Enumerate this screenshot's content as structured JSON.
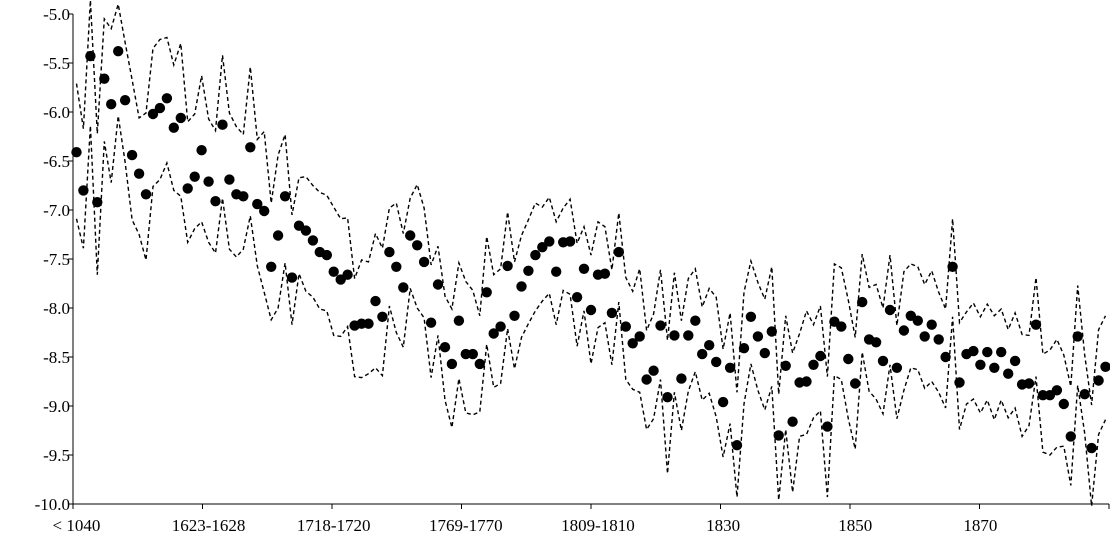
{
  "chart_data": {
    "type": "scatter",
    "title": "",
    "xlabel": "",
    "ylabel": "",
    "ylim": [
      -10.0,
      -5.0
    ],
    "y_ticks": [
      "-5.0",
      "-5.5",
      "-6.0",
      "-6.5",
      "-7.0",
      "-7.5",
      "-8.0",
      "-8.5",
      "-9.0",
      "-9.5",
      "-10.0"
    ],
    "x_tick_labels": [
      "< 1040",
      "1623-1628",
      "1718-1720",
      "1769-1770",
      "1809-1810",
      "1830",
      "1850",
      "1870"
    ],
    "legend": "none",
    "grid": false,
    "colors": {
      "points": "#000000",
      "bands": "#000000",
      "axis": "#000000"
    },
    "series": [
      {
        "style": "markers",
        "values": [
          -6.41,
          -6.8,
          -5.43,
          -6.92,
          -5.66,
          -5.92,
          -5.38,
          -5.88,
          -6.44,
          -6.63,
          -6.84,
          -6.02,
          -5.96,
          -5.86,
          -6.16,
          -6.06,
          -6.78,
          -6.66,
          -6.39,
          -6.71,
          -6.91,
          -6.13,
          -6.69,
          -6.84,
          -6.86,
          -6.36,
          -6.94,
          -7.01,
          -7.58,
          -7.26,
          -6.86,
          -7.69,
          -7.16,
          -7.21,
          -7.31,
          -7.43,
          -7.46,
          -7.63,
          -7.71,
          -7.66,
          -8.18,
          -8.16,
          -8.16,
          -7.93,
          -8.09,
          -7.43,
          -7.58,
          -7.79,
          -7.26,
          -7.36,
          -7.53,
          -8.15,
          -7.76,
          -8.4,
          -8.57,
          -8.13,
          -8.47,
          -8.47,
          -8.57,
          -7.84,
          -8.26,
          -8.19,
          -7.57,
          -8.08,
          -7.78,
          -7.62,
          -7.46,
          -7.38,
          -7.32,
          -7.63,
          -7.33,
          -7.32,
          -7.89,
          -7.6,
          -8.02,
          -7.66,
          -7.65,
          -8.05,
          -7.43,
          -8.19,
          -8.36,
          -8.29,
          -8.73,
          -8.64,
          -8.18,
          -8.91,
          -8.28,
          -8.72,
          -8.28,
          -8.13,
          -8.47,
          -8.38,
          -8.55,
          -8.96,
          -8.61,
          -9.4,
          -8.41,
          -8.09,
          -8.29,
          -8.46,
          -8.24,
          -9.3,
          -8.59,
          -9.16,
          -8.76,
          -8.75,
          -8.58,
          -8.49,
          -9.21,
          -8.14,
          -8.19,
          -8.52,
          -8.77,
          -7.94,
          -8.32,
          -8.35,
          -8.54,
          -8.02,
          -8.61,
          -8.23,
          -8.08,
          -8.13,
          -8.29,
          -8.17,
          -8.32,
          -8.5,
          -7.58,
          -8.76,
          -8.47,
          -8.44,
          -8.58,
          -8.45,
          -8.61,
          -8.45,
          -8.67,
          -8.54,
          -8.78,
          -8.77,
          -8.17,
          -8.89,
          -8.89,
          -8.84,
          -8.98,
          -9.31,
          -8.29,
          -8.88,
          -9.43,
          -8.74,
          -8.6
        ]
      },
      {
        "style": "dashed",
        "values": [
          -5.71,
          -6.17,
          -4.86,
          -6.22,
          -5.05,
          -5.15,
          -4.9,
          -5.29,
          -5.67,
          -6.06,
          -6.01,
          -5.35,
          -5.26,
          -5.24,
          -5.52,
          -5.3,
          -6.1,
          -6.02,
          -5.63,
          -6.07,
          -6.19,
          -5.42,
          -6.01,
          -6.15,
          -6.23,
          -5.54,
          -6.28,
          -6.2,
          -6.93,
          -6.44,
          -6.23,
          -7.05,
          -6.67,
          -6.66,
          -6.75,
          -6.82,
          -6.85,
          -6.97,
          -7.09,
          -7.08,
          -7.7,
          -7.51,
          -7.53,
          -7.24,
          -7.39,
          -6.98,
          -6.93,
          -7.24,
          -6.88,
          -6.74,
          -6.98,
          -7.56,
          -7.37,
          -7.88,
          -8.01,
          -7.54,
          -7.73,
          -7.82,
          -8.08,
          -7.27,
          -7.66,
          -7.6,
          -7.02,
          -7.53,
          -7.26,
          -7.1,
          -6.93,
          -6.97,
          -6.87,
          -7.12,
          -6.98,
          -6.89,
          -7.34,
          -7.17,
          -7.46,
          -7.12,
          -7.17,
          -7.61,
          -7.03,
          -7.69,
          -7.83,
          -7.6,
          -8.23,
          -8.06,
          -7.61,
          -8.33,
          -7.64,
          -8.13,
          -7.7,
          -7.6,
          -7.99,
          -7.8,
          -7.89,
          -8.42,
          -8.05,
          -8.86,
          -7.84,
          -7.52,
          -7.74,
          -7.91,
          -7.58,
          -8.88,
          -8.08,
          -8.46,
          -8.26,
          -8.03,
          -8.17,
          -7.98,
          -8.7,
          -7.55,
          -7.59,
          -7.92,
          -8.3,
          -7.45,
          -7.79,
          -7.76,
          -8.0,
          -7.46,
          -8.18,
          -7.63,
          -7.55,
          -7.58,
          -7.76,
          -7.62,
          -7.84,
          -8.01,
          -7.09,
          -8.15,
          -8.04,
          -7.95,
          -8.09,
          -7.96,
          -8.08,
          -8.01,
          -8.22,
          -8.05,
          -8.27,
          -8.28,
          -7.69,
          -8.47,
          -8.43,
          -8.32,
          -8.48,
          -8.8,
          -7.77,
          -8.48,
          -8.99,
          -8.22,
          -8.08
        ]
      },
      {
        "style": "dashed",
        "values": [
          -7.09,
          -7.39,
          -6.14,
          -7.66,
          -6.3,
          -6.72,
          -6.04,
          -6.51,
          -7.1,
          -7.25,
          -7.51,
          -6.76,
          -6.69,
          -6.52,
          -6.8,
          -6.86,
          -7.33,
          -7.19,
          -7.12,
          -7.33,
          -7.44,
          -6.88,
          -7.4,
          -7.48,
          -7.4,
          -7.06,
          -7.57,
          -7.84,
          -8.12,
          -8.0,
          -7.54,
          -8.17,
          -7.65,
          -7.83,
          -7.89,
          -8.01,
          -8.03,
          -8.28,
          -8.29,
          -8.19,
          -8.7,
          -8.71,
          -8.67,
          -8.61,
          -8.69,
          -7.98,
          -8.25,
          -8.4,
          -7.8,
          -8.0,
          -8.1,
          -8.71,
          -8.28,
          -8.94,
          -9.22,
          -8.72,
          -9.07,
          -9.09,
          -9.06,
          -8.37,
          -8.81,
          -8.77,
          -8.21,
          -8.62,
          -8.3,
          -8.16,
          -8.03,
          -7.93,
          -7.85,
          -8.17,
          -7.82,
          -7.86,
          -8.39,
          -8.03,
          -8.57,
          -8.2,
          -8.15,
          -8.58,
          -7.94,
          -8.73,
          -8.83,
          -8.86,
          -9.24,
          -9.13,
          -8.73,
          -9.69,
          -8.86,
          -9.25,
          -8.85,
          -8.65,
          -8.94,
          -8.87,
          -9.11,
          -9.52,
          -9.18,
          -9.93,
          -8.98,
          -8.57,
          -8.84,
          -9.04,
          -8.8,
          -9.96,
          -9.24,
          -9.88,
          -9.31,
          -9.29,
          -9.12,
          -9.05,
          -9.93,
          -8.69,
          -8.73,
          -9.13,
          -9.44,
          -8.45,
          -8.85,
          -8.93,
          -9.08,
          -8.58,
          -9.13,
          -8.84,
          -8.61,
          -8.63,
          -8.82,
          -8.75,
          -8.86,
          -9.02,
          -8.09,
          -9.24,
          -8.98,
          -8.93,
          -9.07,
          -8.94,
          -9.14,
          -8.94,
          -9.12,
          -9.02,
          -9.31,
          -9.2,
          -8.7,
          -9.47,
          -9.5,
          -9.42,
          -9.41,
          -9.81,
          -8.79,
          -9.28,
          -10.02,
          -9.29,
          -9.14
        ]
      }
    ]
  }
}
